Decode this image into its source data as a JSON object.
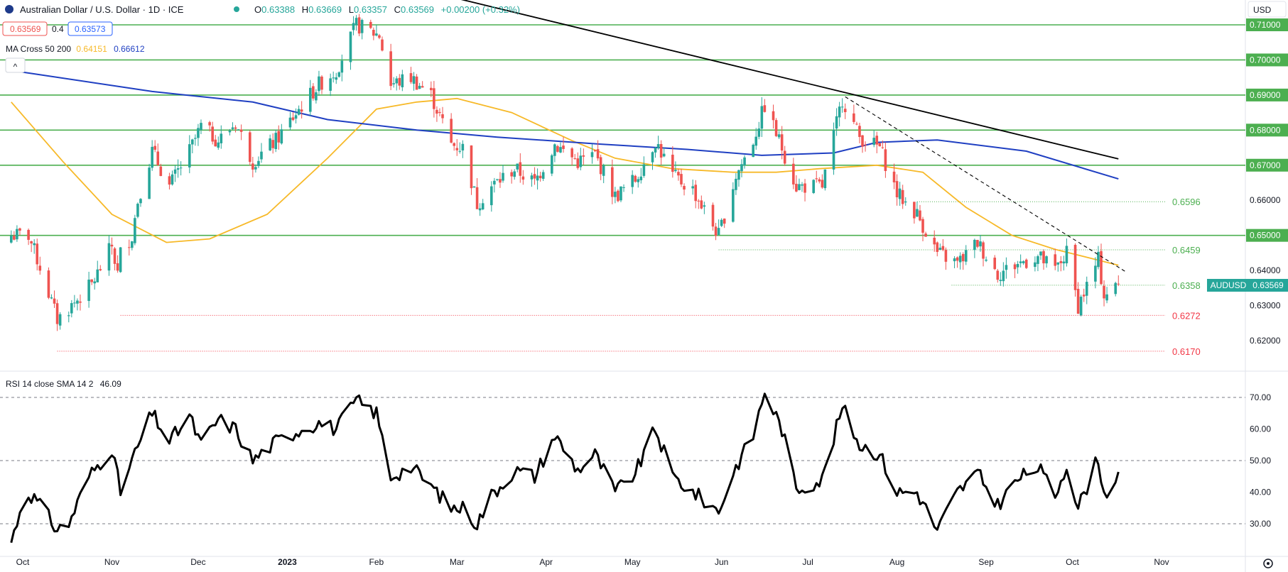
{
  "header": {
    "symbol_title": "Australian Dollar / U.S. Dollar · 1D · ICE",
    "ohlc": [
      {
        "label": "O",
        "value": "0.63388"
      },
      {
        "label": "H",
        "value": "0.63669"
      },
      {
        "label": "L",
        "value": "0.63357"
      },
      {
        "label": "C",
        "value": "0.63569"
      }
    ],
    "change": "+0.00200 (+0.32%)",
    "bid": "0.63569",
    "spread": "0.4",
    "ask": "0.63573",
    "ma_label": "MA Cross 50 200",
    "ma50_value": "0.64151",
    "ma200_value": "0.66612",
    "collapse_glyph": "^",
    "currency": "USD",
    "price_tag_symbol": "AUDUSD",
    "price_tag_value": "0.63569"
  },
  "colors": {
    "up": "#26a69a",
    "down": "#ef5350",
    "ma50": "#f7b928",
    "ma200": "#1f3fc2",
    "level": "#4caf50",
    "support": "#f23645",
    "trendline": "#000000",
    "rsi": "#000000"
  },
  "rsi_panel": {
    "label": "RSI 14 close SMA 14 2",
    "value": "46.09"
  },
  "settings_icon": "settings-icon",
  "chart_data": [
    {
      "type": "candlestick",
      "title": "Australian Dollar / U.S. Dollar · 1D · ICE",
      "x_axis_labels": [
        "Oct",
        "Nov",
        "Dec",
        "2023",
        "Feb",
        "Mar",
        "Apr",
        "May",
        "Jun",
        "Jul",
        "Aug",
        "Sep",
        "Oct",
        "Nov"
      ],
      "y_ticks": [
        "0.71000",
        "0.70000",
        "0.69000",
        "0.68000",
        "0.67000",
        "0.66000",
        "0.65000",
        "0.64000",
        "0.63000",
        "0.62000"
      ],
      "ylim": [
        0.613,
        0.7157
      ],
      "round_levels": [
        0.71,
        0.7,
        0.69,
        0.68,
        0.67,
        0.65
      ],
      "swing_levels": [
        {
          "label": "0.6596",
          "value": 0.6596,
          "color": "green"
        },
        {
          "label": "0.6459",
          "value": 0.6459,
          "color": "green"
        },
        {
          "label": "0.6358",
          "value": 0.6358,
          "color": "green"
        },
        {
          "label": "0.6272",
          "value": 0.6272,
          "color": "red"
        },
        {
          "label": "0.6170",
          "value": 0.617,
          "color": "red"
        }
      ],
      "close_path": [
        [
          "2022-10-03",
          0.65
        ],
        [
          "2022-10-07",
          0.641
        ],
        [
          "2022-10-13",
          0.626
        ],
        [
          "2022-10-18",
          0.63
        ],
        [
          "2022-10-25",
          0.636
        ],
        [
          "2022-11-01",
          0.647
        ],
        [
          "2022-11-03",
          0.639
        ],
        [
          "2022-11-04",
          0.645
        ],
        [
          "2022-11-08",
          0.65
        ],
        [
          "2022-11-10",
          0.66
        ],
        [
          "2022-11-15",
          0.674
        ],
        [
          "2022-11-21",
          0.664
        ],
        [
          "2022-11-28",
          0.674
        ],
        [
          "2022-12-02",
          0.681
        ],
        [
          "2022-12-08",
          0.677
        ],
        [
          "2022-12-14",
          0.682
        ],
        [
          "2022-12-20",
          0.671
        ],
        [
          "2022-12-28",
          0.677
        ],
        [
          "2023-01-06",
          0.687
        ],
        [
          "2023-01-12",
          0.693
        ],
        [
          "2023-01-18",
          0.697
        ],
        [
          "2023-01-25",
          0.71
        ],
        [
          "2023-02-02",
          0.707
        ],
        [
          "2023-02-06",
          0.693
        ],
        [
          "2023-02-13",
          0.695
        ],
        [
          "2023-02-20",
          0.69
        ],
        [
          "2023-02-27",
          0.676
        ],
        [
          "2023-03-03",
          0.675
        ],
        [
          "2023-03-08",
          0.659
        ],
        [
          "2023-03-13",
          0.664
        ],
        [
          "2023-03-21",
          0.669
        ],
        [
          "2023-03-28",
          0.665
        ],
        [
          "2023-04-04",
          0.676
        ],
        [
          "2023-04-12",
          0.671
        ],
        [
          "2023-04-18",
          0.673
        ],
        [
          "2023-04-25",
          0.661
        ],
        [
          "2023-05-02",
          0.666
        ],
        [
          "2023-05-09",
          0.677
        ],
        [
          "2023-05-15",
          0.667
        ],
        [
          "2023-05-22",
          0.663
        ],
        [
          "2023-05-31",
          0.65
        ],
        [
          "2023-06-06",
          0.667
        ],
        [
          "2023-06-12",
          0.677
        ],
        [
          "2023-06-16",
          0.687
        ],
        [
          "2023-06-22",
          0.675
        ],
        [
          "2023-06-27",
          0.664
        ],
        [
          "2023-07-06",
          0.664
        ],
        [
          "2023-07-13",
          0.689
        ],
        [
          "2023-07-19",
          0.678
        ],
        [
          "2023-07-26",
          0.675
        ],
        [
          "2023-08-01",
          0.662
        ],
        [
          "2023-08-08",
          0.656
        ],
        [
          "2023-08-15",
          0.645
        ],
        [
          "2023-08-22",
          0.642
        ],
        [
          "2023-08-29",
          0.648
        ],
        [
          "2023-09-05",
          0.639
        ],
        [
          "2023-09-12",
          0.642
        ],
        [
          "2023-09-19",
          0.644
        ],
        [
          "2023-09-25",
          0.64
        ],
        [
          "2023-09-29",
          0.645
        ],
        [
          "2023-10-03",
          0.63
        ],
        [
          "2023-10-10",
          0.643
        ],
        [
          "2023-10-12",
          0.633
        ],
        [
          "2023-10-17",
          0.6357
        ]
      ],
      "ma50": [
        [
          "2022-09-27",
          0.688
        ],
        [
          "2022-10-15",
          0.671
        ],
        [
          "2022-11-01",
          0.656
        ],
        [
          "2022-11-20",
          0.648
        ],
        [
          "2022-12-05",
          0.649
        ],
        [
          "2022-12-25",
          0.656
        ],
        [
          "2023-01-15",
          0.672
        ],
        [
          "2023-02-01",
          0.686
        ],
        [
          "2023-02-15",
          0.688
        ],
        [
          "2023-03-01",
          0.689
        ],
        [
          "2023-03-20",
          0.685
        ],
        [
          "2023-04-10",
          0.677
        ],
        [
          "2023-04-25",
          0.672
        ],
        [
          "2023-05-15",
          0.669
        ],
        [
          "2023-06-05",
          0.668
        ],
        [
          "2023-06-20",
          0.668
        ],
        [
          "2023-07-05",
          0.669
        ],
        [
          "2023-07-25",
          0.67
        ],
        [
          "2023-08-10",
          0.668
        ],
        [
          "2023-08-25",
          0.658
        ],
        [
          "2023-09-10",
          0.65
        ],
        [
          "2023-09-25",
          0.646
        ],
        [
          "2023-10-17",
          0.6415
        ]
      ],
      "ma200": [
        [
          "2022-09-27",
          0.697
        ],
        [
          "2022-11-15",
          0.691
        ],
        [
          "2022-12-20",
          0.688
        ],
        [
          "2023-01-15",
          0.683
        ],
        [
          "2023-02-15",
          0.68
        ],
        [
          "2023-03-15",
          0.678
        ],
        [
          "2023-04-20",
          0.676
        ],
        [
          "2023-05-20",
          0.6745
        ],
        [
          "2023-06-15",
          0.6728
        ],
        [
          "2023-07-10",
          0.6735
        ],
        [
          "2023-07-25",
          0.6765
        ],
        [
          "2023-08-15",
          0.6772
        ],
        [
          "2023-09-15",
          0.674
        ],
        [
          "2023-10-17",
          0.6661
        ]
      ],
      "trendlines": [
        {
          "style": "solid",
          "from": [
            "2023-01-30",
            0.7235
          ],
          "to": [
            "2023-10-17",
            0.6718
          ]
        },
        {
          "style": "dashed",
          "from": [
            "2023-07-14",
            0.6895
          ],
          "to": [
            "2023-10-20",
            0.6394
          ]
        }
      ]
    },
    {
      "type": "line",
      "title": "RSI 14 close SMA 14 2",
      "y_ticks": [
        "70.00",
        "60.00",
        "50.00",
        "40.00",
        "30.00"
      ],
      "ylim": [
        24,
        75
      ],
      "reference_lines": [
        70,
        50,
        30
      ],
      "rsi": [
        [
          "2022-09-27",
          24
        ],
        [
          "2022-09-30",
          34
        ],
        [
          "2022-10-03",
          40
        ],
        [
          "2022-10-07",
          36
        ],
        [
          "2022-10-13",
          28
        ],
        [
          "2022-10-17",
          30
        ],
        [
          "2022-10-24",
          45
        ],
        [
          "2022-11-01",
          54
        ],
        [
          "2022-11-04",
          40
        ],
        [
          "2022-11-08",
          50
        ],
        [
          "2022-11-15",
          65
        ],
        [
          "2022-11-21",
          56
        ],
        [
          "2022-11-28",
          64
        ],
        [
          "2022-12-02",
          55
        ],
        [
          "2022-12-08",
          63
        ],
        [
          "2022-12-14",
          60
        ],
        [
          "2022-12-20",
          50
        ],
        [
          "2022-12-28",
          56
        ],
        [
          "2023-01-06",
          60
        ],
        [
          "2023-01-12",
          62
        ],
        [
          "2023-01-18",
          60
        ],
        [
          "2023-01-25",
          69
        ],
        [
          "2023-02-01",
          65
        ],
        [
          "2023-02-06",
          45
        ],
        [
          "2023-02-13",
          48
        ],
        [
          "2023-02-20",
          42
        ],
        [
          "2023-02-27",
          35
        ],
        [
          "2023-03-03",
          35
        ],
        [
          "2023-03-08",
          30
        ],
        [
          "2023-03-13",
          39
        ],
        [
          "2023-03-21",
          47
        ],
        [
          "2023-03-28",
          45
        ],
        [
          "2023-04-04",
          58
        ],
        [
          "2023-04-12",
          47
        ],
        [
          "2023-04-18",
          52
        ],
        [
          "2023-04-25",
          40
        ],
        [
          "2023-05-02",
          46
        ],
        [
          "2023-05-09",
          60
        ],
        [
          "2023-05-15",
          45
        ],
        [
          "2023-05-22",
          40
        ],
        [
          "2023-05-31",
          34
        ],
        [
          "2023-06-06",
          48
        ],
        [
          "2023-06-12",
          58
        ],
        [
          "2023-06-16",
          72
        ],
        [
          "2023-06-22",
          60
        ],
        [
          "2023-06-27",
          41
        ],
        [
          "2023-07-06",
          44
        ],
        [
          "2023-07-13",
          67
        ],
        [
          "2023-07-19",
          55
        ],
        [
          "2023-07-26",
          52
        ],
        [
          "2023-08-01",
          40
        ],
        [
          "2023-08-08",
          40
        ],
        [
          "2023-08-15",
          28
        ],
        [
          "2023-08-22",
          40
        ],
        [
          "2023-08-29",
          46
        ],
        [
          "2023-09-05",
          36
        ],
        [
          "2023-09-12",
          44
        ],
        [
          "2023-09-19",
          48
        ],
        [
          "2023-09-25",
          39
        ],
        [
          "2023-09-29",
          49
        ],
        [
          "2023-10-03",
          35
        ],
        [
          "2023-10-10",
          51
        ],
        [
          "2023-10-12",
          39
        ],
        [
          "2023-10-17",
          46.09
        ]
      ]
    }
  ]
}
